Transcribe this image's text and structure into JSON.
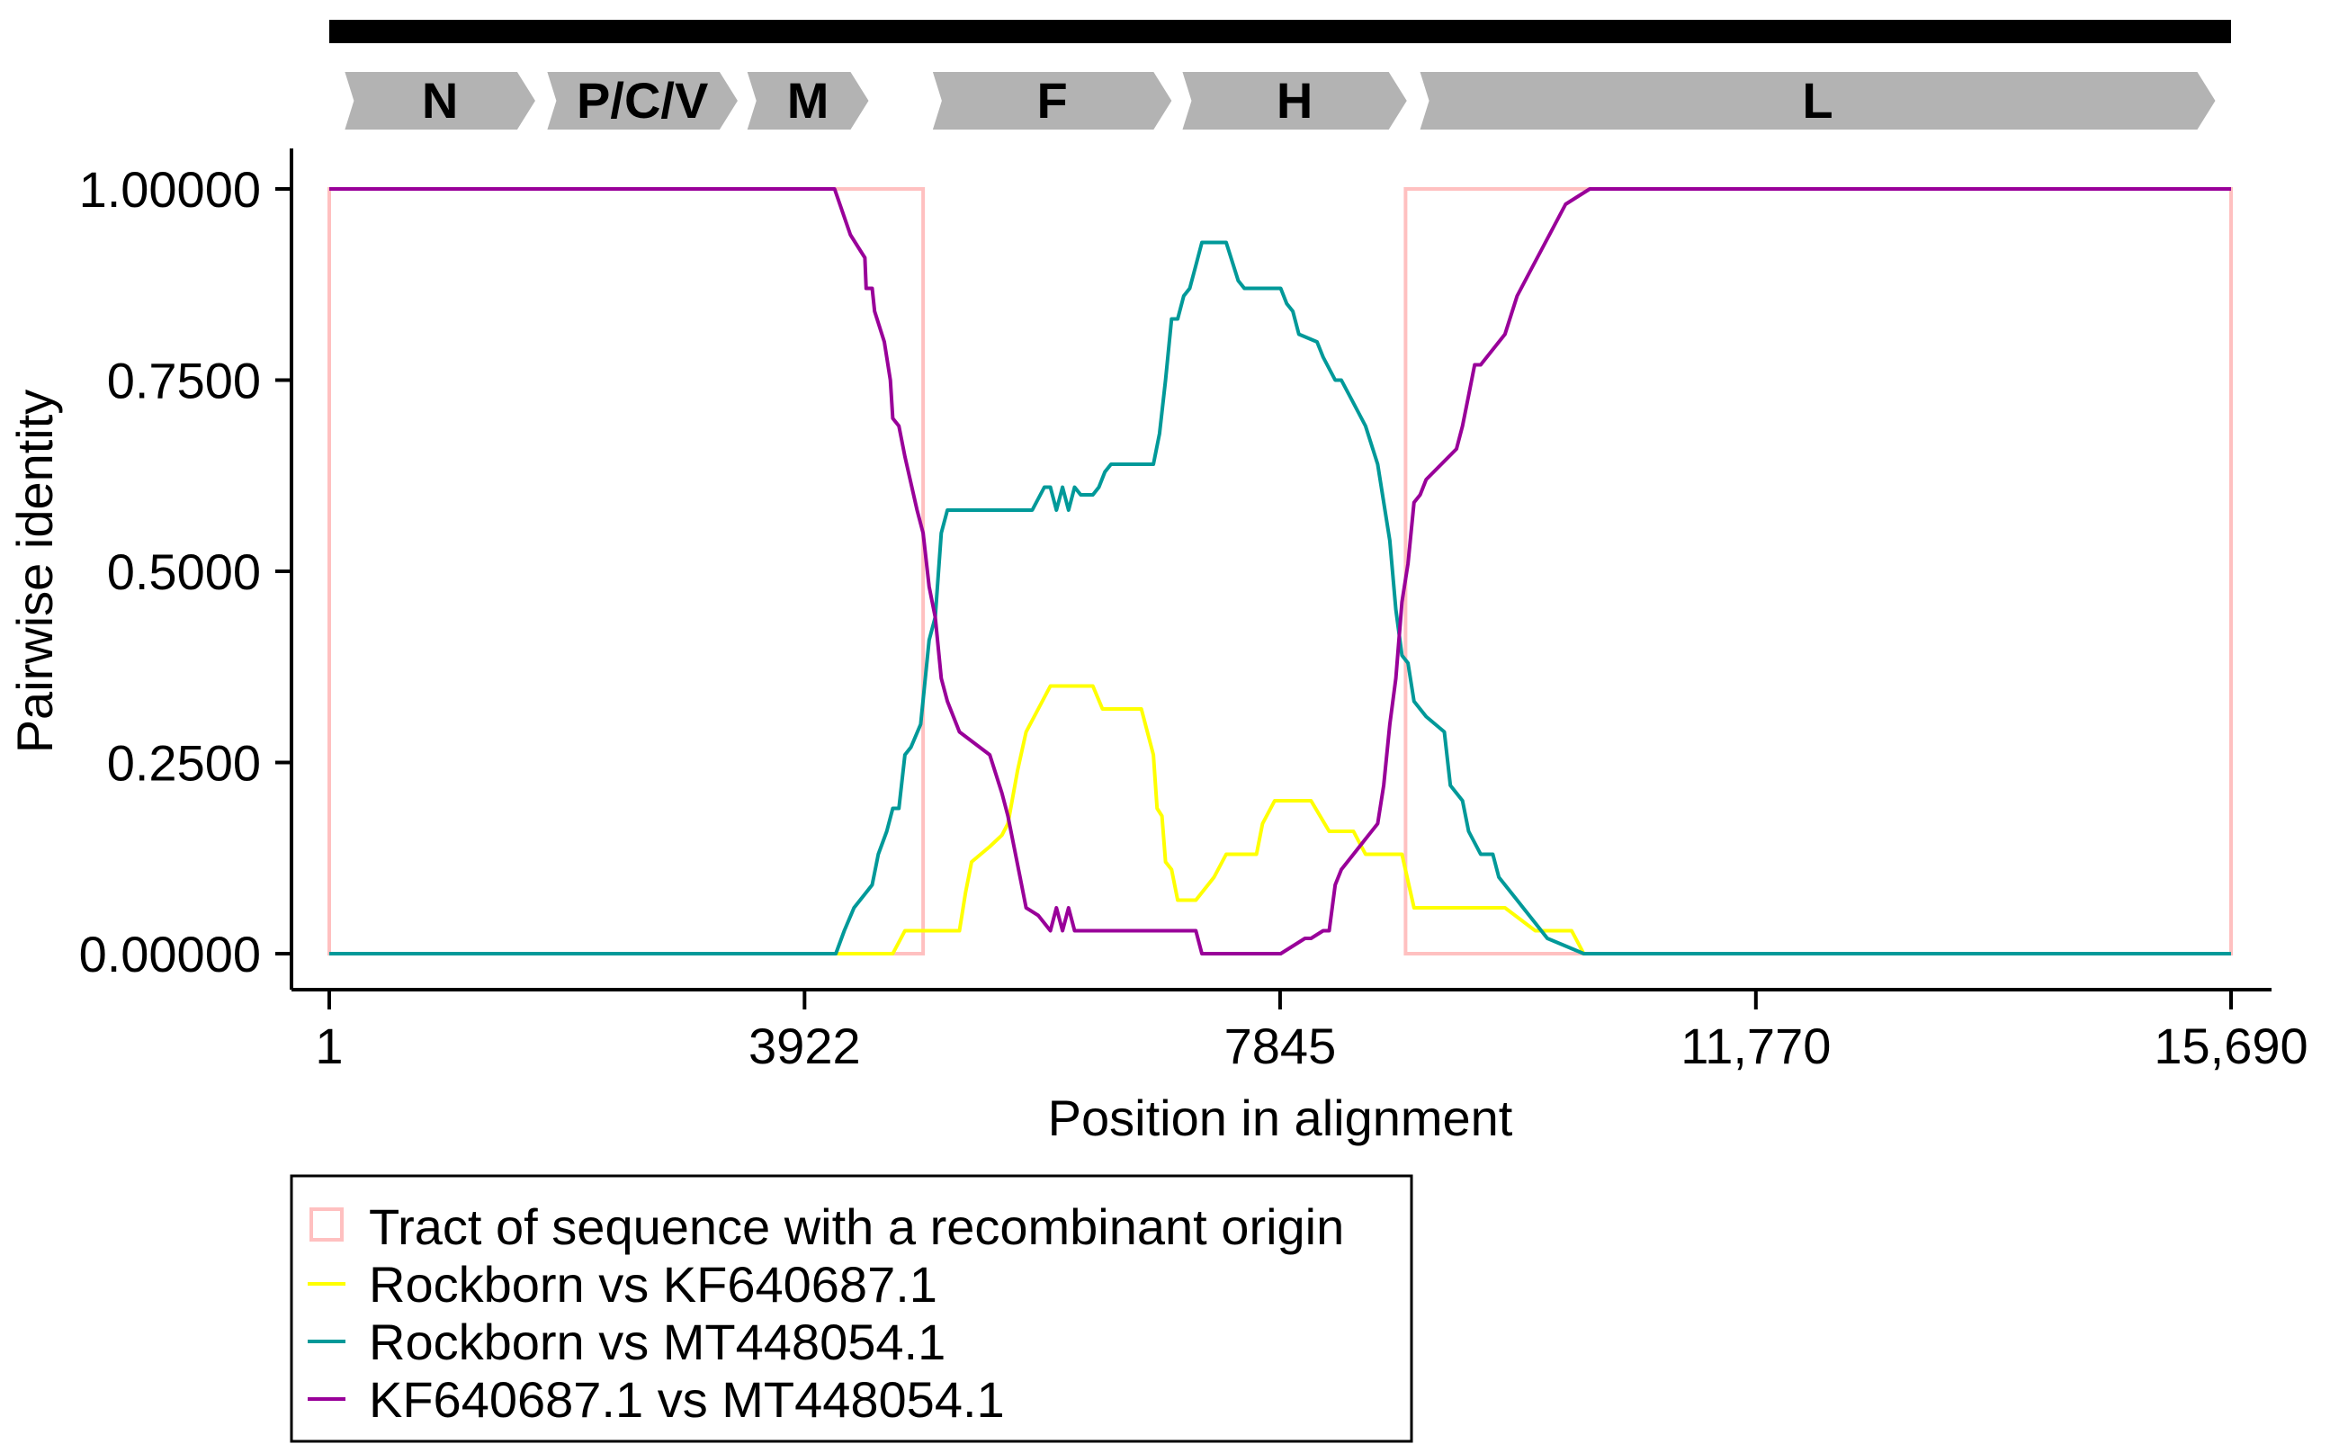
{
  "chart_data": {
    "type": "line",
    "title": "",
    "xlabel": "Position in alignment",
    "ylabel": "Pairwise identity",
    "xlim": [
      1,
      15690
    ],
    "ylim": [
      0,
      1
    ],
    "x_ticks": [
      1,
      3922,
      7845,
      11770,
      15690
    ],
    "x_tick_labels": [
      "1",
      "3922",
      "7845",
      "11,770",
      "15,690"
    ],
    "y_ticks": [
      0,
      0.25,
      0.5,
      0.75,
      1
    ],
    "y_tick_labels": [
      "0.00000",
      "0.2500",
      "0.5000",
      "0.7500",
      "1.00000"
    ],
    "genes": [
      {
        "name": "N",
        "start": 130,
        "end": 1700
      },
      {
        "name": "P/C/V",
        "start": 1800,
        "end": 3370
      },
      {
        "name": "M",
        "start": 3450,
        "end": 4450
      },
      {
        "name": "F",
        "start": 4980,
        "end": 6950
      },
      {
        "name": "H",
        "start": 7040,
        "end": 8890
      },
      {
        "name": "L",
        "start": 9000,
        "end": 15560
      }
    ],
    "genome_bar": {
      "start": 1,
      "end": 15690
    },
    "recombinant_tracts": [
      {
        "start": 1,
        "end": 4900
      },
      {
        "start": 8880,
        "end": 15690
      }
    ],
    "legend_position": "bottom-left",
    "legend": [
      {
        "label": "Tract of sequence with a recombinant origin",
        "kind": "box",
        "color": "#ffc0c0"
      },
      {
        "label": "Rockborn vs KF640687.1",
        "kind": "line",
        "color": "#ffff00"
      },
      {
        "label": "Rockborn vs MT448054.1",
        "kind": "line",
        "color": "#009999"
      },
      {
        "label": "KF640687.1 vs MT448054.1",
        "kind": "line",
        "color": "#990099"
      }
    ],
    "series": [
      {
        "name": "Rockborn vs KF640687.1",
        "color": "#ffff00",
        "points": [
          [
            1,
            0
          ],
          [
            4200,
            0
          ],
          [
            4650,
            0
          ],
          [
            4750,
            0.03
          ],
          [
            4900,
            0.03
          ],
          [
            5200,
            0.03
          ],
          [
            5250,
            0.08
          ],
          [
            5300,
            0.12
          ],
          [
            5450,
            0.14
          ],
          [
            5550,
            0.155
          ],
          [
            5600,
            0.17
          ],
          [
            5680,
            0.24
          ],
          [
            5750,
            0.29
          ],
          [
            5850,
            0.32
          ],
          [
            5950,
            0.35
          ],
          [
            6300,
            0.35
          ],
          [
            6380,
            0.32
          ],
          [
            6700,
            0.32
          ],
          [
            6800,
            0.26
          ],
          [
            6830,
            0.19
          ],
          [
            6870,
            0.18
          ],
          [
            6900,
            0.12
          ],
          [
            6950,
            0.11
          ],
          [
            7000,
            0.07
          ],
          [
            7150,
            0.07
          ],
          [
            7250,
            0.09
          ],
          [
            7300,
            0.1
          ],
          [
            7400,
            0.13
          ],
          [
            7650,
            0.13
          ],
          [
            7700,
            0.17
          ],
          [
            7800,
            0.2
          ],
          [
            8100,
            0.2
          ],
          [
            8250,
            0.16
          ],
          [
            8450,
            0.16
          ],
          [
            8550,
            0.13
          ],
          [
            8850,
            0.13
          ],
          [
            8950,
            0.06
          ],
          [
            9700,
            0.06
          ],
          [
            9950,
            0.03
          ],
          [
            10250,
            0.03
          ],
          [
            10350,
            0
          ],
          [
            15690,
            0
          ]
        ]
      },
      {
        "name": "Rockborn vs MT448054.1",
        "color": "#009999",
        "points": [
          [
            1,
            0
          ],
          [
            4180,
            0
          ],
          [
            4250,
            0.03
          ],
          [
            4330,
            0.06
          ],
          [
            4430,
            0.08
          ],
          [
            4480,
            0.09
          ],
          [
            4530,
            0.13
          ],
          [
            4600,
            0.16
          ],
          [
            4650,
            0.19
          ],
          [
            4700,
            0.19
          ],
          [
            4750,
            0.26
          ],
          [
            4800,
            0.27
          ],
          [
            4880,
            0.3
          ],
          [
            4950,
            0.41
          ],
          [
            5000,
            0.44
          ],
          [
            5050,
            0.55
          ],
          [
            5100,
            0.58
          ],
          [
            5800,
            0.58
          ],
          [
            5900,
            0.61
          ],
          [
            5950,
            0.61
          ],
          [
            6000,
            0.58
          ],
          [
            6050,
            0.61
          ],
          [
            6100,
            0.58
          ],
          [
            6150,
            0.61
          ],
          [
            6200,
            0.6
          ],
          [
            6300,
            0.6
          ],
          [
            6350,
            0.61
          ],
          [
            6400,
            0.63
          ],
          [
            6450,
            0.64
          ],
          [
            6800,
            0.64
          ],
          [
            6850,
            0.68
          ],
          [
            6900,
            0.75
          ],
          [
            6950,
            0.83
          ],
          [
            7000,
            0.83
          ],
          [
            7050,
            0.86
          ],
          [
            7100,
            0.87
          ],
          [
            7150,
            0.9
          ],
          [
            7200,
            0.93
          ],
          [
            7400,
            0.93
          ],
          [
            7500,
            0.88
          ],
          [
            7550,
            0.87
          ],
          [
            7850,
            0.87
          ],
          [
            7900,
            0.85
          ],
          [
            7950,
            0.84
          ],
          [
            8000,
            0.81
          ],
          [
            8150,
            0.8
          ],
          [
            8200,
            0.78
          ],
          [
            8300,
            0.75
          ],
          [
            8350,
            0.75
          ],
          [
            8450,
            0.72
          ],
          [
            8550,
            0.69
          ],
          [
            8650,
            0.64
          ],
          [
            8750,
            0.54
          ],
          [
            8800,
            0.45
          ],
          [
            8850,
            0.39
          ],
          [
            8900,
            0.38
          ],
          [
            8950,
            0.33
          ],
          [
            9050,
            0.31
          ],
          [
            9200,
            0.29
          ],
          [
            9250,
            0.22
          ],
          [
            9350,
            0.2
          ],
          [
            9400,
            0.16
          ],
          [
            9500,
            0.13
          ],
          [
            9600,
            0.13
          ],
          [
            9650,
            0.1
          ],
          [
            9800,
            0.07
          ],
          [
            9850,
            0.06
          ],
          [
            9950,
            0.04
          ],
          [
            10050,
            0.02
          ],
          [
            10200,
            0.01
          ],
          [
            10350,
            0
          ],
          [
            15690,
            0
          ]
        ]
      },
      {
        "name": "KF640687.1 vs MT448054.1",
        "color": "#990099",
        "points": [
          [
            1,
            1
          ],
          [
            4170,
            1
          ],
          [
            4300,
            0.94
          ],
          [
            4380,
            0.92
          ],
          [
            4420,
            0.91
          ],
          [
            4430,
            0.87
          ],
          [
            4480,
            0.87
          ],
          [
            4500,
            0.84
          ],
          [
            4580,
            0.8
          ],
          [
            4630,
            0.75
          ],
          [
            4650,
            0.7
          ],
          [
            4700,
            0.69
          ],
          [
            4750,
            0.65
          ],
          [
            4850,
            0.58
          ],
          [
            4900,
            0.55
          ],
          [
            4950,
            0.48
          ],
          [
            5000,
            0.44
          ],
          [
            5050,
            0.36
          ],
          [
            5100,
            0.33
          ],
          [
            5200,
            0.29
          ],
          [
            5450,
            0.26
          ],
          [
            5550,
            0.21
          ],
          [
            5600,
            0.18
          ],
          [
            5700,
            0.1
          ],
          [
            5750,
            0.06
          ],
          [
            5850,
            0.05
          ],
          [
            5950,
            0.03
          ],
          [
            6000,
            0.06
          ],
          [
            6050,
            0.03
          ],
          [
            6100,
            0.06
          ],
          [
            6150,
            0.03
          ],
          [
            6700,
            0.03
          ],
          [
            6800,
            0.03
          ],
          [
            6950,
            0.03
          ],
          [
            7150,
            0.03
          ],
          [
            7200,
            0
          ],
          [
            7850,
            0
          ],
          [
            8050,
            0.02
          ],
          [
            8100,
            0.02
          ],
          [
            8200,
            0.03
          ],
          [
            8250,
            0.03
          ],
          [
            8300,
            0.09
          ],
          [
            8350,
            0.11
          ],
          [
            8450,
            0.13
          ],
          [
            8550,
            0.15
          ],
          [
            8650,
            0.17
          ],
          [
            8700,
            0.22
          ],
          [
            8750,
            0.3
          ],
          [
            8800,
            0.36
          ],
          [
            8850,
            0.46
          ],
          [
            8900,
            0.51
          ],
          [
            8950,
            0.59
          ],
          [
            9000,
            0.6
          ],
          [
            9050,
            0.62
          ],
          [
            9300,
            0.66
          ],
          [
            9350,
            0.69
          ],
          [
            9400,
            0.73
          ],
          [
            9450,
            0.77
          ],
          [
            9500,
            0.77
          ],
          [
            9700,
            0.81
          ],
          [
            9800,
            0.86
          ],
          [
            9900,
            0.89
          ],
          [
            10000,
            0.92
          ],
          [
            10100,
            0.95
          ],
          [
            10200,
            0.98
          ],
          [
            10300,
            0.99
          ],
          [
            10400,
            1
          ],
          [
            15690,
            1
          ]
        ]
      }
    ]
  }
}
